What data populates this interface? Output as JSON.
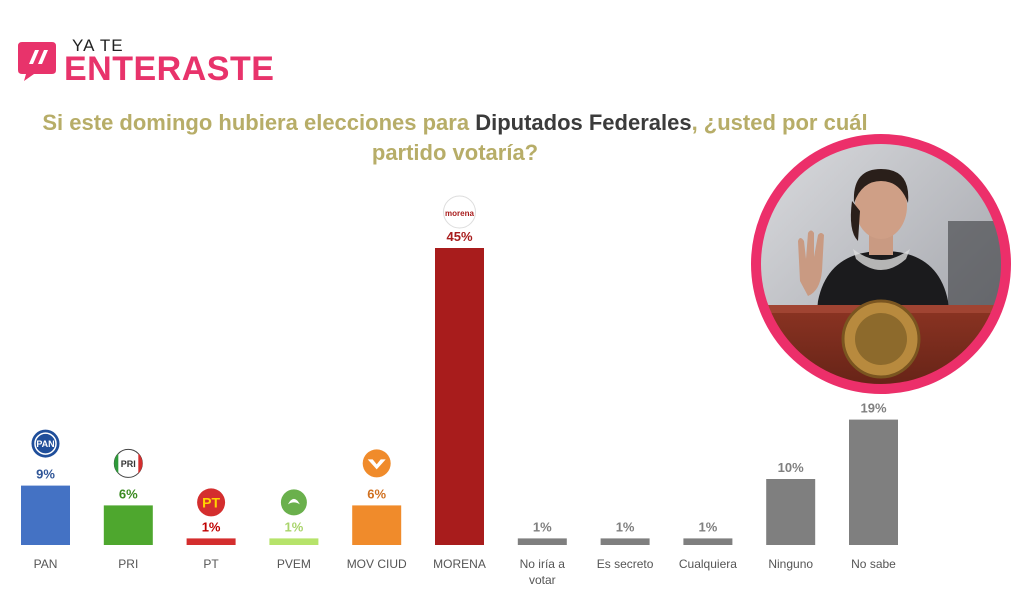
{
  "brand": {
    "top": "YA TE",
    "bottom": "ENTERASTE"
  },
  "question": {
    "before": "Si este domingo hubiera elecciones para ",
    "highlight": "Diputados Federales",
    "after": ", ¿usted por cuál partido votaría?"
  },
  "chart_data": {
    "type": "bar",
    "title": "Si este domingo hubiera elecciones para Diputados Federales, ¿usted por cuál partido votaría?",
    "categories": [
      "PAN",
      "PRI",
      "PT",
      "PVEM",
      "MOV CIUD",
      "MORENA",
      "No iría a votar",
      "Es secreto",
      "Cualquiera",
      "Ninguno",
      "No sabe"
    ],
    "values": [
      9,
      6,
      1,
      1,
      6,
      45,
      1,
      1,
      1,
      10,
      19
    ],
    "value_labels": [
      "9%",
      "6%",
      "1%",
      "1%",
      "6%",
      "45%",
      "1%",
      "1%",
      "1%",
      "10%",
      "19%"
    ],
    "colors": [
      "#4472c4",
      "#4ea72e",
      "#d42e2e",
      "#b6e36a",
      "#f08b2b",
      "#a81c1c",
      "#7f7f7f",
      "#7f7f7f",
      "#7f7f7f",
      "#7f7f7f",
      "#7f7f7f"
    ],
    "label_colors": [
      "#2f5597",
      "#3a8a20",
      "#c00000",
      "#a9d46b",
      "#d07020",
      "#a81c1c",
      "#7f7f7f",
      "#7f7f7f",
      "#7f7f7f",
      "#7f7f7f",
      "#7f7f7f"
    ],
    "party_logos": [
      "PAN",
      "PRI",
      "PT",
      "",
      "",
      "morena",
      "",
      "",
      "",
      "",
      ""
    ],
    "ylim": [
      0,
      48
    ],
    "grid": false,
    "legend": "none"
  }
}
